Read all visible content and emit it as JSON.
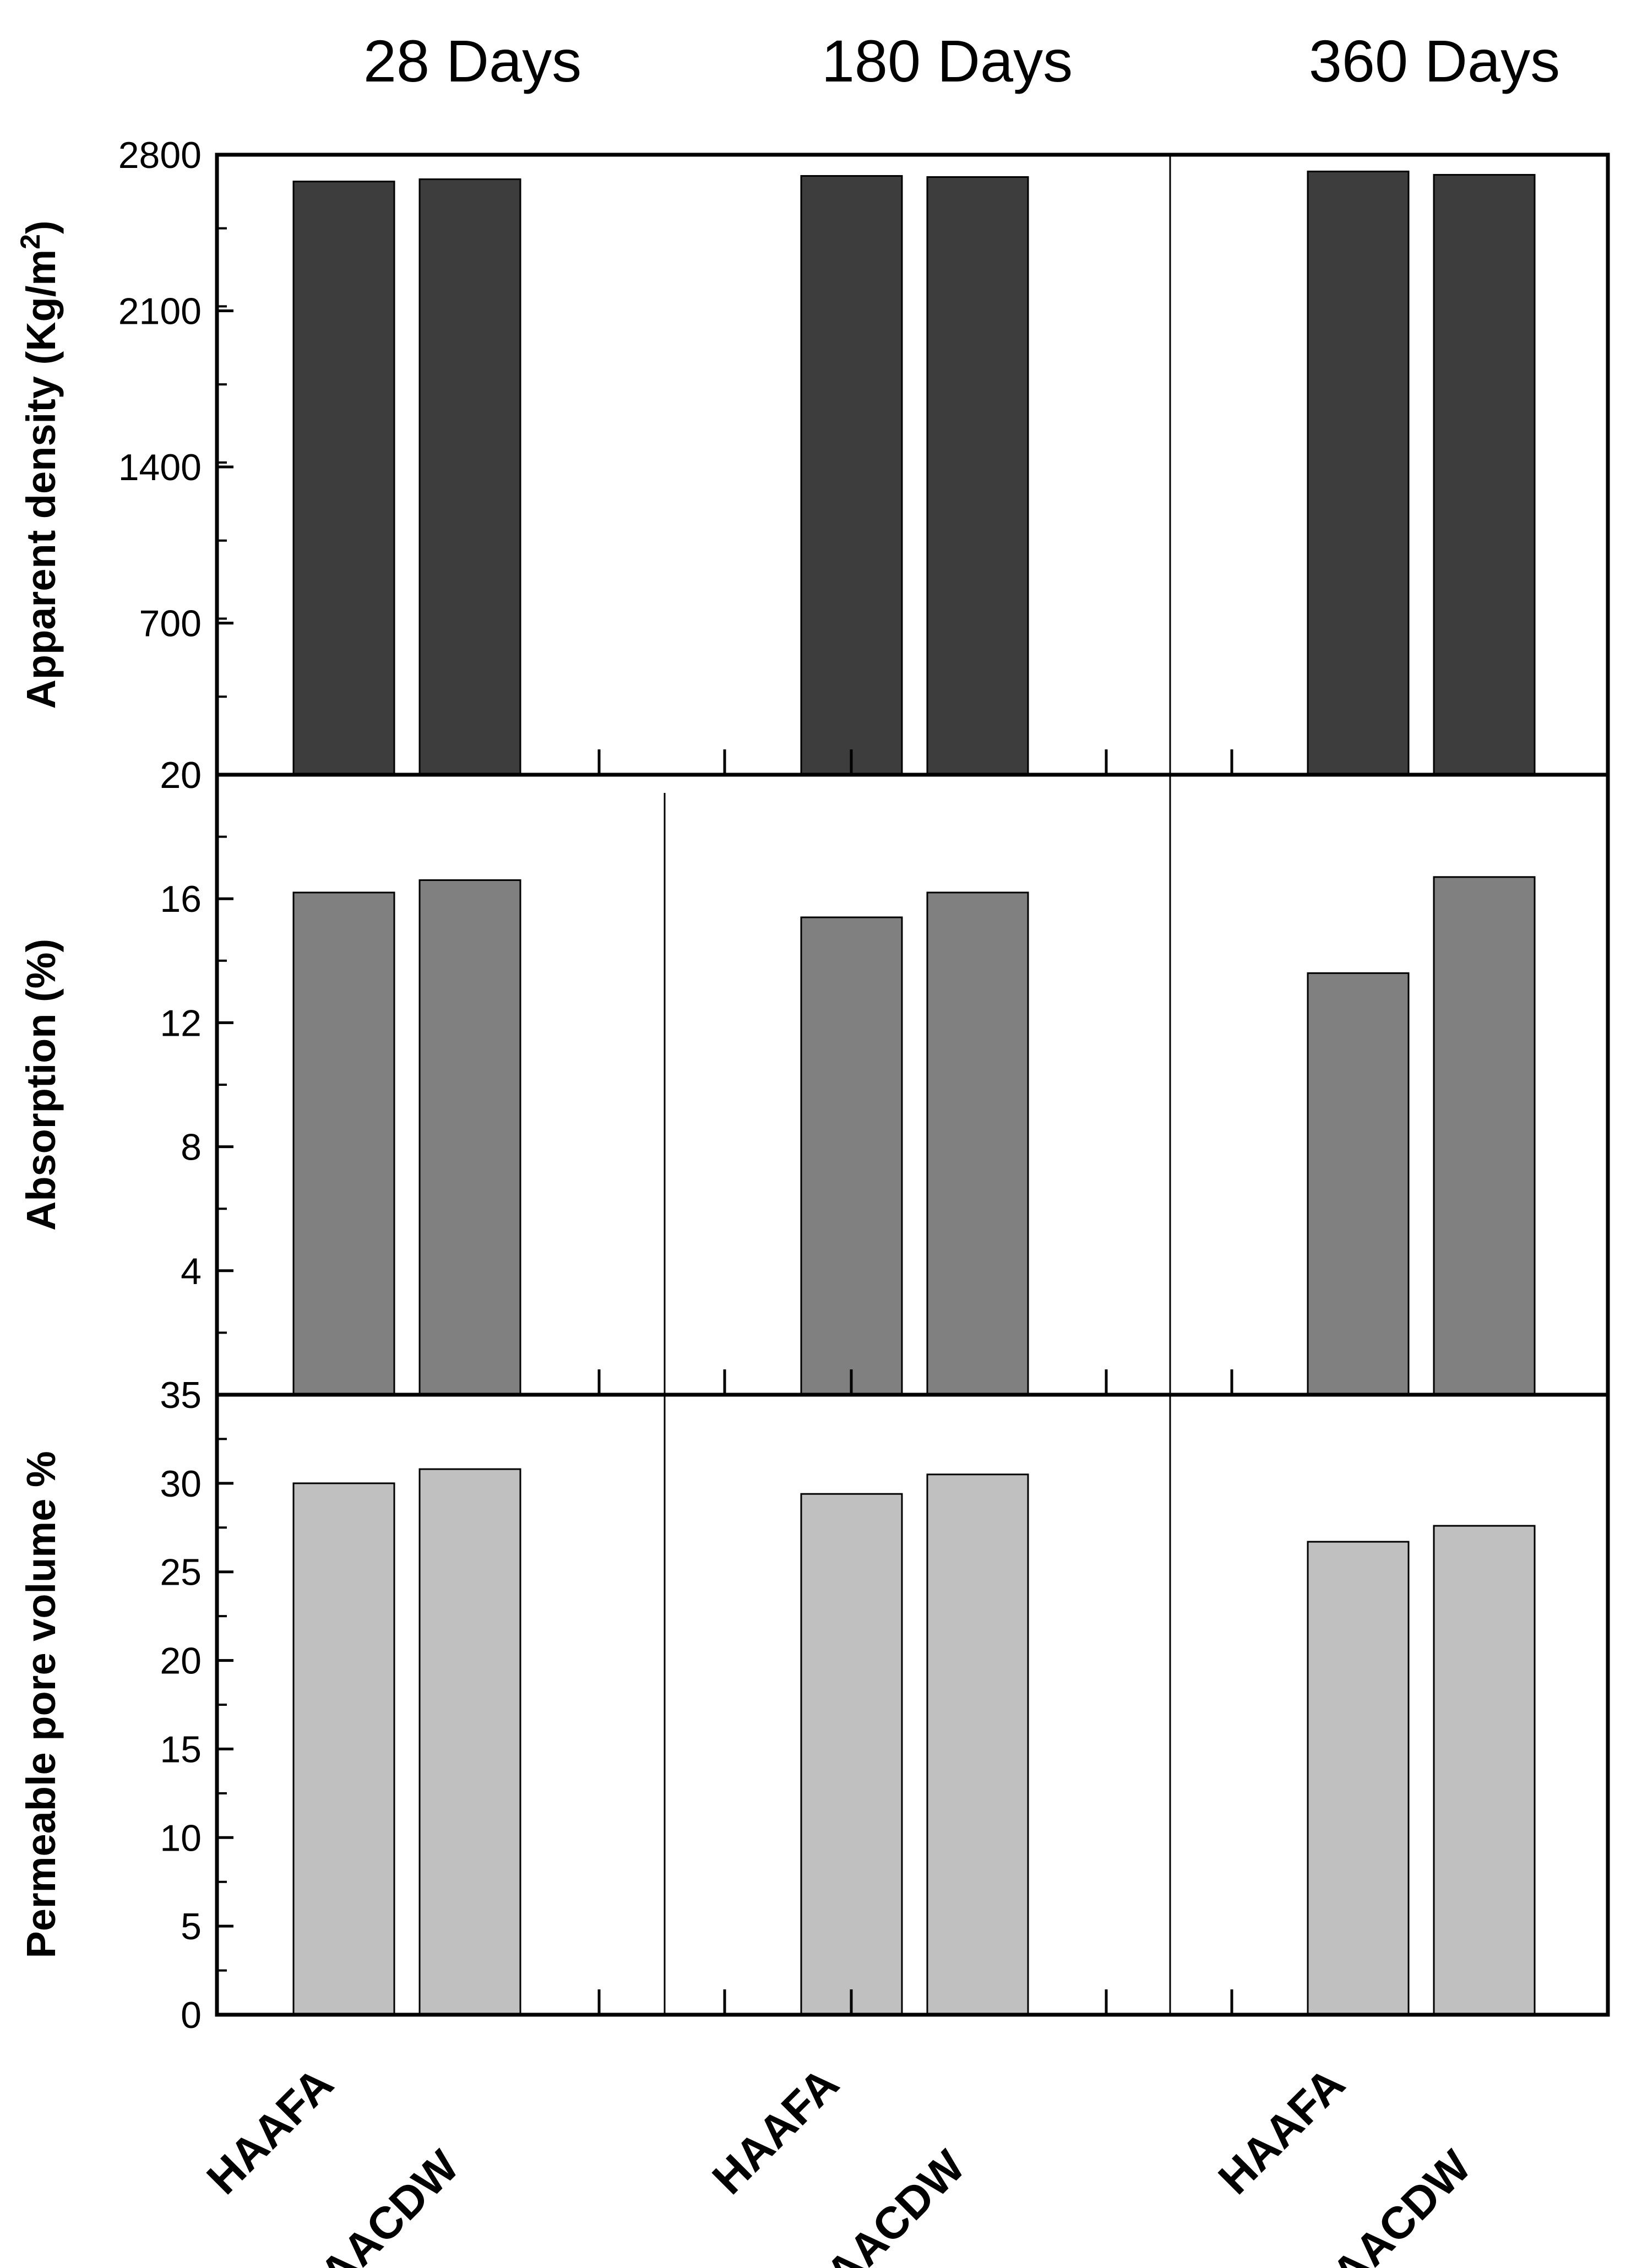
{
  "chart_data": {
    "type": "bar",
    "layout": "stacked-panels",
    "groups": [
      "28 Days",
      "180 Days",
      "360 Days"
    ],
    "categories": [
      "HAAFA",
      "HAACDW"
    ],
    "panels": [
      {
        "ylabel_main": "Apparent density (Kg/m",
        "ylabel_sup": "2",
        "ylabel_end": ")",
        "ylim": [
          20,
          2800
        ],
        "ticks": [
          "20",
          "700",
          "1400",
          "2100",
          "2800"
        ],
        "tick_values": [
          20,
          700,
          1400,
          2100,
          2800
        ],
        "minor_step": 350,
        "color": "#3d3d3d",
        "values": [
          [
            2680,
            2690
          ],
          [
            2705,
            2700
          ],
          [
            2725,
            2710
          ]
        ]
      },
      {
        "ylabel_main": "Absorption (%)",
        "ylim": [
          0,
          20
        ],
        "ticks": [
          "4",
          "8",
          "12",
          "16",
          "20"
        ],
        "tick_values": [
          4,
          8,
          12,
          16,
          20
        ],
        "minor_step": 2,
        "color": "#808080",
        "values": [
          [
            16.2,
            16.6
          ],
          [
            15.4,
            16.2
          ],
          [
            13.6,
            16.7
          ]
        ]
      },
      {
        "ylabel_main": "Permeable pore volume %",
        "ylim": [
          0,
          35
        ],
        "ticks": [
          "0",
          "5",
          "10",
          "15",
          "20",
          "25",
          "30",
          "35"
        ],
        "tick_values": [
          0,
          5,
          10,
          15,
          20,
          25,
          30,
          35
        ],
        "minor_step": 2.5,
        "color": "#c0c0c0",
        "values": [
          [
            30.0,
            30.8
          ],
          [
            29.4,
            30.5
          ],
          [
            26.7,
            27.6
          ]
        ]
      }
    ]
  }
}
